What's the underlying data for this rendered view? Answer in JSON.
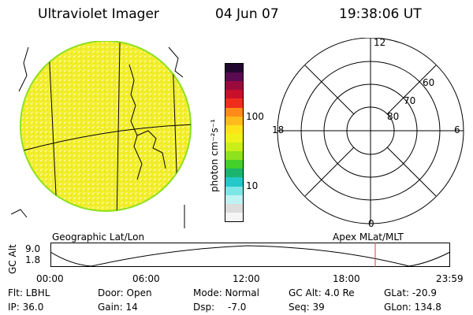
{
  "header": {
    "title": "Ultraviolet Imager",
    "date": "04 Jun 07",
    "time": "19:38:06 UT"
  },
  "colorbar": {
    "unit_label": "photon cm⁻²s⁻¹",
    "ticks": [
      "100",
      "10"
    ],
    "colors": [
      "#f5f5f5",
      "#dcdcdc",
      "#bff3f3",
      "#7ee6e6",
      "#25c8c8",
      "#1ab46e",
      "#44d02a",
      "#8fe21e",
      "#c9ee1a",
      "#eef21a",
      "#fde21a",
      "#ffba1c",
      "#ff8c19",
      "#ee2d1c",
      "#c8102a",
      "#9a0a3c",
      "#5a0a50",
      "#220830"
    ]
  },
  "left_panel": {
    "caption": "Geographic Lat/Lon",
    "disk_fill": "#f4f03a",
    "disk_edge": "#8fe01e"
  },
  "right_panel": {
    "caption": "Apex MLat/MLT",
    "mlt_labels": {
      "top": "12",
      "bottom": "0",
      "left": "18",
      "right": "6"
    },
    "lat_labels": [
      "60",
      "70",
      "80"
    ]
  },
  "altitude_plot": {
    "ylabel": "GC Alt",
    "yticks": [
      "9.0",
      "1.8"
    ],
    "xticks": [
      "00:00",
      "06:00",
      "12:00",
      "18:00",
      "23:59"
    ],
    "marker_color": "#e23a3a",
    "marker_time": "19:38"
  },
  "info": {
    "filter": "Flt: LBHL",
    "door": "Door: Open",
    "mode": "Mode: Normal",
    "gc_alt": "GC Alt: 4.0 Re",
    "glat": "GLat: -20.9",
    "ip": "IP: 36.0",
    "gain": "Gain: 14",
    "dsp_label": "Dsp:",
    "dsp_value": "-7.0",
    "seq": "Seq: 39",
    "glon": "GLon: 134.8"
  }
}
